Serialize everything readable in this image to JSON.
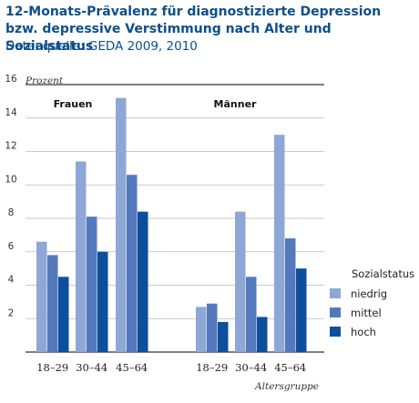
{
  "title": "12-Monats-Prävalenz für diagnostizierte Depression bzw. depressive Verstimmung nach Alter und Sozialstatus",
  "source": "Datenquelle: GEDA 2009, 2010",
  "chart_data": {
    "type": "bar",
    "ylabel": "Prozent",
    "xlabel": "Altersgruppe",
    "ylim": [
      0,
      16
    ],
    "yticks": [
      "2",
      "4",
      "6",
      "8",
      "10",
      "12",
      "14",
      "16"
    ],
    "grid": true,
    "legend_title": "Sozialstatus",
    "legend_position": "right",
    "groups": [
      {
        "name": "Frauen",
        "categories": [
          "18–29",
          "30–44",
          "45–64"
        ],
        "series": [
          {
            "name": "niedrig",
            "values": [
              6.6,
              11.4,
              15.2
            ]
          },
          {
            "name": "mittel",
            "values": [
              5.8,
              8.1,
              10.6
            ]
          },
          {
            "name": "hoch",
            "values": [
              4.5,
              6.0,
              8.4
            ]
          }
        ]
      },
      {
        "name": "Männer",
        "categories": [
          "18–29",
          "30–44",
          "45–64"
        ],
        "series": [
          {
            "name": "niedrig",
            "values": [
              2.7,
              8.4,
              13.0
            ]
          },
          {
            "name": "mittel",
            "values": [
              2.9,
              4.5,
              6.8
            ]
          },
          {
            "name": "hoch",
            "values": [
              1.8,
              2.1,
              5.0
            ]
          }
        ]
      }
    ],
    "colors": {
      "niedrig": "#8ea7d6",
      "mittel": "#5579bd",
      "hoch": "#0d4f9a"
    }
  }
}
